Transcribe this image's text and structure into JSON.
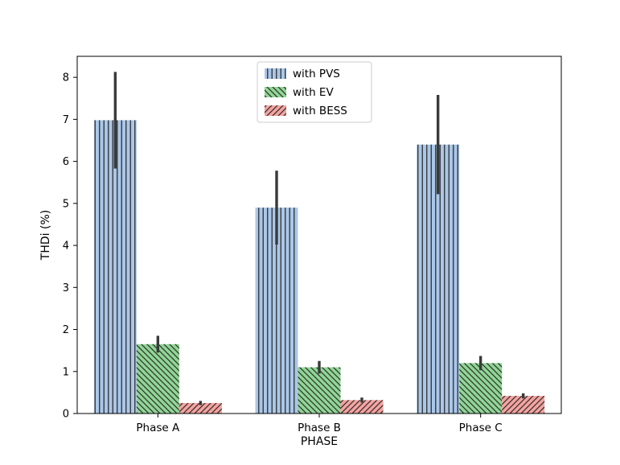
{
  "figure": {
    "background": "#ffffff"
  },
  "chart_data": {
    "type": "bar",
    "title": "",
    "xlabel": "PHASE",
    "ylabel": "THDi (%)",
    "categories": [
      "Phase A",
      "Phase B",
      "Phase C"
    ],
    "series": [
      {
        "name": "with PVS",
        "color": "#aac7e8",
        "hatch": "||",
        "values": [
          6.98,
          4.9,
          6.4
        ],
        "errors": [
          1.15,
          0.88,
          1.18
        ]
      },
      {
        "name": "with EV",
        "color": "#8fd694",
        "hatch": "\\\\",
        "values": [
          1.65,
          1.1,
          1.2
        ],
        "errors": [
          0.2,
          0.15,
          0.17
        ]
      },
      {
        "name": "with BESS",
        "color": "#f5a3a0",
        "hatch": "//",
        "values": [
          0.25,
          0.32,
          0.42
        ],
        "errors": [
          0.05,
          0.06,
          0.06
        ]
      }
    ],
    "ylim": [
      0,
      8.5
    ],
    "yticks": [
      0,
      1,
      2,
      3,
      4,
      5,
      6,
      7,
      8
    ],
    "legend": {
      "position": "upper center",
      "entries": [
        "with PVS",
        "with EV",
        "with BESS"
      ]
    },
    "grid": false,
    "axis_color": "#000000",
    "error_bar_color": "#3a3a3a",
    "hatch_color": "#2f2f2f",
    "legend_border_color": "#cccccc"
  }
}
